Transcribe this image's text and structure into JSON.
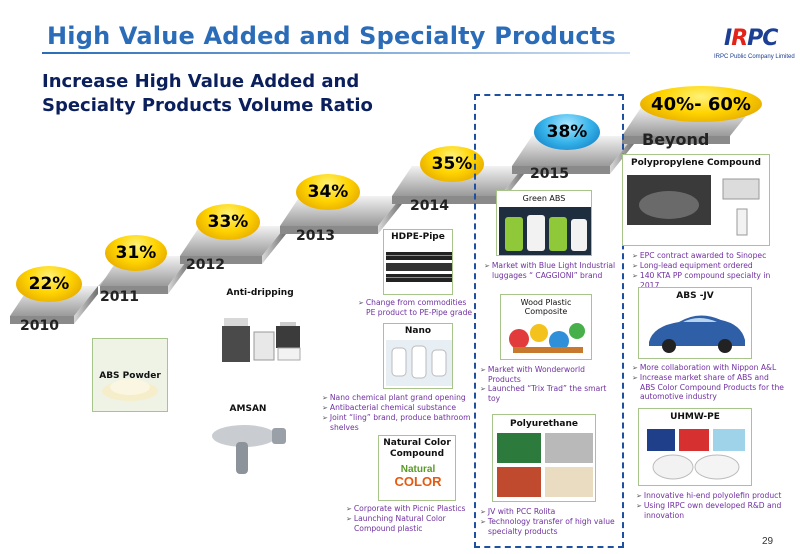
{
  "header": {
    "title": "High Value Added and Specialty Products",
    "subtitle_line1": "Increase High Value Added and",
    "subtitle_line2": "Specialty Products Volume Ratio"
  },
  "logo": {
    "word_prefix": "I",
    "word_r": "R",
    "word_suffix": "PC",
    "tagline": "IRPC Public Company Limited"
  },
  "steps": [
    {
      "pct": "22%",
      "year": "2010"
    },
    {
      "pct": "31%",
      "year": "2011"
    },
    {
      "pct": "33%",
      "year": "2012"
    },
    {
      "pct": "34%",
      "year": "2013"
    },
    {
      "pct": "35%",
      "year": "2014"
    },
    {
      "pct": "38%",
      "year": "2015"
    },
    {
      "pct": "40%- 60%",
      "year": "Beyond"
    }
  ],
  "products": {
    "abs_powder": "ABS Powder",
    "anti_dripping": "Anti-dripping",
    "amsan": "AMSAN",
    "hdpe_pipe": "HDPE-Pipe",
    "nano": "Nano",
    "natural_color": "Natural Color Compound",
    "green_abs": "Green ABS",
    "wood_plastic": "Wood Plastic Composite",
    "polyurethane": "Polyurethane",
    "pp_compound": "Polypropylene  Compound",
    "abs_jv": "ABS -JV",
    "uhmw_pe": "UHMW-PE"
  },
  "natural_logo": {
    "line1": "Natural",
    "line2": "COLOR"
  },
  "bullets": {
    "hdpe": [
      "Change from commodities PE product to PE-Pipe grade"
    ],
    "nano": [
      "Nano chemical plant grand opening",
      "Antibacterial chemical substance",
      "Joint “ling” brand, produce bathroom shelves"
    ],
    "natural": [
      "Corporate with Picnic Plastics",
      "Launching Natural Color Compound plastic"
    ],
    "green_abs": [
      "Market with Blue Light Industrial luggages “ CAGGIONI” brand"
    ],
    "wood": [
      "Market with Wonderworld Products",
      "Launched “Trix Trad” the smart toy"
    ],
    "polyurethane": [
      "JV with PCC Rolita",
      "Technology transfer of high value specialty products"
    ],
    "pp": [
      "EPC contract awarded to Sinopec",
      "Long-lead equipment ordered",
      "140 KTA PP compound specialty in 2017"
    ],
    "absjv": [
      "More collaboration with Nippon A&L",
      "Increase market share of ABS and ABS Color Compound Products for the automotive industry"
    ],
    "uhmw": [
      "Innovative hi-end polyolefin product",
      "Using IRPC own developed R&D and innovation"
    ]
  },
  "colors": {
    "title_blue": "#2a6cb8",
    "subtitle_navy": "#0a1f5c",
    "bullet_purple": "#7030a0",
    "dash_blue": "#1f4fa0"
  },
  "page_number": "29"
}
